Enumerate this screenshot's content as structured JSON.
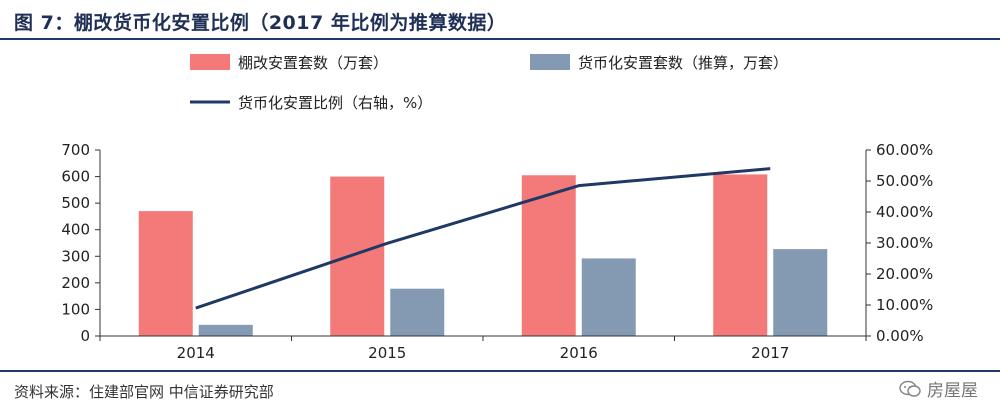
{
  "title": "图 7：棚改货币化安置比例（2017 年比例为推算数据）",
  "source": "资料来源：住建部官网  中信证券研究部",
  "watermark": "房屋屋",
  "colors": {
    "series1": "#f47a7a",
    "series2": "#8499b2",
    "line": "#1f3864",
    "rule": "#1f3864"
  },
  "chart_data": {
    "type": "bar",
    "categories": [
      "2014",
      "2015",
      "2016",
      "2017"
    ],
    "series": [
      {
        "name": "棚改安置套数（万套）",
        "type": "bar",
        "axis": "left",
        "values": [
          470,
          600,
          605,
          608
        ]
      },
      {
        "name": "货币化安置套数（推算，万套）",
        "type": "bar",
        "axis": "left",
        "values": [
          42,
          178,
          292,
          327
        ]
      },
      {
        "name": "货币化安置比例（右轴，%）",
        "type": "line",
        "axis": "right",
        "values": [
          9.0,
          29.9,
          48.5,
          54.0
        ]
      }
    ],
    "y_left": {
      "min": 0,
      "max": 700,
      "ticks": [
        "0",
        "100",
        "200",
        "300",
        "400",
        "500",
        "600",
        "700"
      ]
    },
    "y_right": {
      "min": 0,
      "max": 60,
      "ticks": [
        "0.00%",
        "10.00%",
        "20.00%",
        "30.00%",
        "40.00%",
        "50.00%",
        "60.00%"
      ]
    },
    "legend_position": "top",
    "grid": false
  }
}
